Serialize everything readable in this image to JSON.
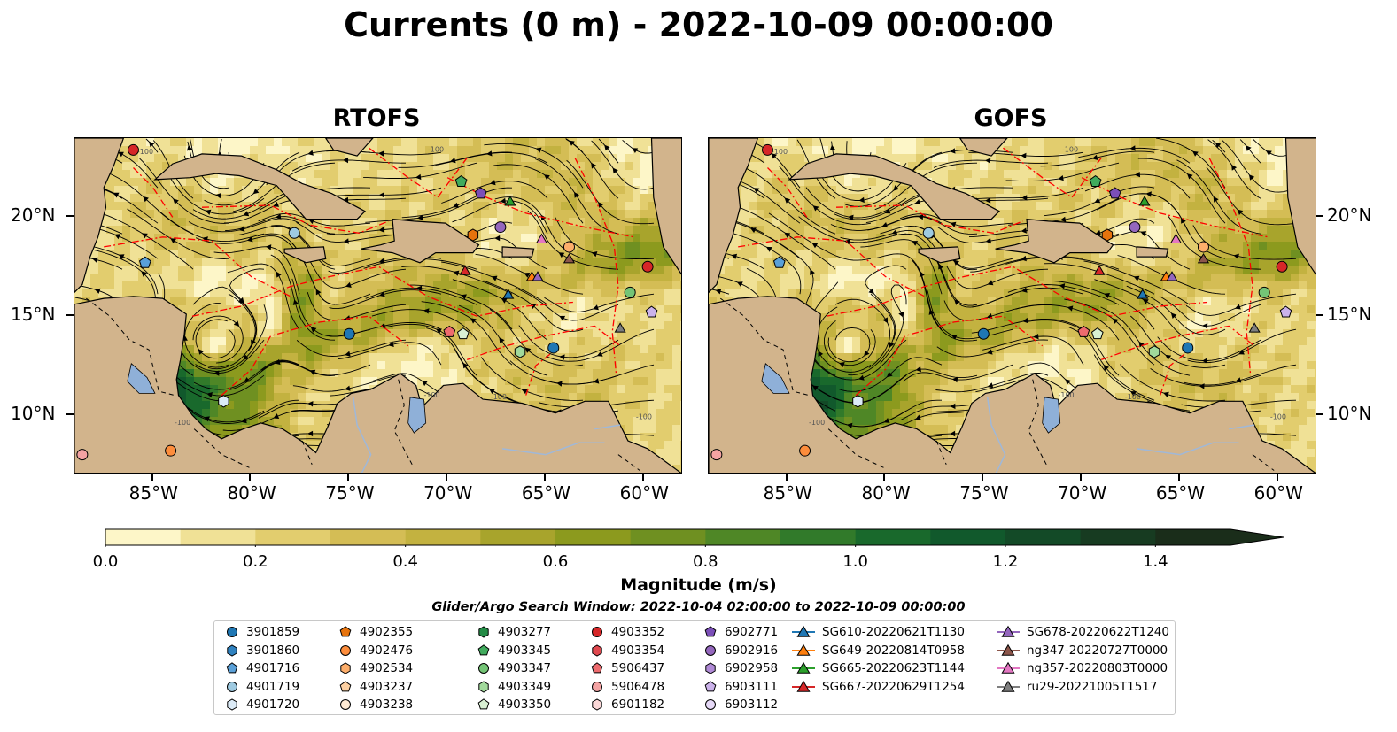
{
  "title": "Currents (0 m) - 2022-10-09 00:00:00",
  "panels": [
    {
      "title": "RTOFS"
    },
    {
      "title": "GOFS"
    }
  ],
  "map": {
    "lon_range": [
      -89.0,
      -58.0
    ],
    "lat_range": [
      7.0,
      24.0
    ],
    "x_ticks": [
      "85°W",
      "80°W",
      "75°W",
      "70°W",
      "65°W",
      "60°W"
    ],
    "x_tick_values": [
      -85,
      -80,
      -75,
      -70,
      -65,
      -60
    ],
    "y_ticks": [
      "20°N",
      "15°N",
      "10°N"
    ],
    "y_tick_values": [
      20,
      15,
      10
    ],
    "land_color": "#d2b48c",
    "eez_color": "#ff0000",
    "colormap": [
      "#fdf6c8",
      "#f0e196",
      "#e2cd6e",
      "#d4bd55",
      "#c3b240",
      "#a8a42c",
      "#8c9a1e",
      "#6f9021",
      "#4f8726",
      "#317a2a",
      "#19692c",
      "#11592c",
      "#134a27",
      "#173b21",
      "#1a2d1a"
    ]
  },
  "colorbar": {
    "title": "Magnitude (m/s)",
    "ticks": [
      "0.0",
      "0.2",
      "0.4",
      "0.6",
      "0.8",
      "1.0",
      "1.2",
      "1.4"
    ],
    "tick_values": [
      0.0,
      0.2,
      0.4,
      0.6,
      0.8,
      1.0,
      1.2,
      1.4
    ],
    "range": [
      0.0,
      1.5
    ]
  },
  "search_window": "Glider/Argo Search Window: 2022-10-04 02:00:00 to 2022-10-09 00:00:00",
  "legend": {
    "columns": [
      [
        {
          "label": "3901859",
          "shape": "circle",
          "color": "#1f77b4"
        },
        {
          "label": "3901860",
          "shape": "hexagon",
          "color": "#2f82c0"
        },
        {
          "label": "4901716",
          "shape": "pentagon",
          "color": "#5aa0d8"
        },
        {
          "label": "4901719",
          "shape": "circle",
          "color": "#9ecae1"
        },
        {
          "label": "4901720",
          "shape": "hexagon",
          "color": "#dcebf7"
        }
      ],
      [
        {
          "label": "4902355",
          "shape": "pentagon",
          "color": "#e6730d"
        },
        {
          "label": "4902476",
          "shape": "circle",
          "color": "#fd8d3c"
        },
        {
          "label": "4902534",
          "shape": "hexagon",
          "color": "#fdae6b"
        },
        {
          "label": "4903237",
          "shape": "pentagon",
          "color": "#fdd0a2"
        },
        {
          "label": "4903238",
          "shape": "circle",
          "color": "#feead4"
        }
      ],
      [
        {
          "label": "4903277",
          "shape": "hexagon",
          "color": "#238b45"
        },
        {
          "label": "4903345",
          "shape": "pentagon",
          "color": "#41ab5d"
        },
        {
          "label": "4903347",
          "shape": "circle",
          "color": "#74c476"
        },
        {
          "label": "4903349",
          "shape": "hexagon",
          "color": "#a1d99b"
        },
        {
          "label": "4903350",
          "shape": "pentagon",
          "color": "#d9f0d3"
        }
      ],
      [
        {
          "label": "4903352",
          "shape": "circle",
          "color": "#d62728"
        },
        {
          "label": "4903354",
          "shape": "hexagon",
          "color": "#e0484e"
        },
        {
          "label": "5906437",
          "shape": "pentagon",
          "color": "#ee6b6e"
        },
        {
          "label": "5906478",
          "shape": "circle",
          "color": "#f4a3a3"
        },
        {
          "label": "6901182",
          "shape": "hexagon",
          "color": "#fbd8d8"
        }
      ],
      [
        {
          "label": "6902771",
          "shape": "pentagon",
          "color": "#7b4fb8"
        },
        {
          "label": "6902916",
          "shape": "circle",
          "color": "#9467bd"
        },
        {
          "label": "6902958",
          "shape": "hexagon",
          "color": "#b08ad6"
        },
        {
          "label": "6903111",
          "shape": "pentagon",
          "color": "#cbb2ea"
        },
        {
          "label": "6903112",
          "shape": "circle",
          "color": "#e6d9f7"
        }
      ],
      [
        {
          "label": "SG610-20220621T1130",
          "shape": "triangle-line",
          "color": "#1f77b4"
        },
        {
          "label": "SG649-20220814T0958",
          "shape": "triangle-line",
          "color": "#ff7f0e"
        },
        {
          "label": "SG665-20220623T1144",
          "shape": "triangle-line",
          "color": "#2ca02c"
        },
        {
          "label": "SG667-20220629T1254",
          "shape": "triangle-line",
          "color": "#d62728"
        }
      ],
      [
        {
          "label": "SG678-20220622T1240",
          "shape": "triangle-line",
          "color": "#9467bd"
        },
        {
          "label": "ng347-20220727T0000",
          "shape": "triangle-line",
          "color": "#8c564b"
        },
        {
          "label": "ng357-20220803T0000",
          "shape": "triangle-line",
          "color": "#e377c2"
        },
        {
          "label": "ru29-20221005T1517",
          "shape": "triangle-line",
          "color": "#7f7f7f"
        }
      ]
    ]
  },
  "markers": [
    {
      "lon": -86.0,
      "lat": 23.4,
      "shape": "circle",
      "color": "#d62728"
    },
    {
      "lon": -85.4,
      "lat": 17.7,
      "shape": "pentagon",
      "color": "#5aa0d8"
    },
    {
      "lon": -77.8,
      "lat": 19.2,
      "shape": "circle",
      "color": "#9ecae1"
    },
    {
      "lon": -81.4,
      "lat": 10.7,
      "shape": "hexagon",
      "color": "#dcebf7"
    },
    {
      "lon": -75.0,
      "lat": 14.1,
      "shape": "circle",
      "color": "#1f77b4"
    },
    {
      "lon": -84.1,
      "lat": 8.2,
      "shape": "circle",
      "color": "#fd8d3c"
    },
    {
      "lon": -88.6,
      "lat": 8.0,
      "shape": "circle",
      "color": "#f4a3a3"
    },
    {
      "lon": -69.3,
      "lat": 21.8,
      "shape": "pentagon",
      "color": "#41ab5d"
    },
    {
      "lon": -68.3,
      "lat": 21.2,
      "shape": "pentagon",
      "color": "#7b4fb8"
    },
    {
      "lon": -66.8,
      "lat": 20.8,
      "shape": "triangle",
      "color": "#2ca02c"
    },
    {
      "lon": -67.3,
      "lat": 19.5,
      "shape": "circle",
      "color": "#9467bd"
    },
    {
      "lon": -68.7,
      "lat": 19.1,
      "shape": "hexagon",
      "color": "#e6730d"
    },
    {
      "lon": -65.2,
      "lat": 18.9,
      "shape": "triangle",
      "color": "#e377c2"
    },
    {
      "lon": -63.8,
      "lat": 18.5,
      "shape": "circle",
      "color": "#fdae6b"
    },
    {
      "lon": -63.8,
      "lat": 17.9,
      "shape": "triangle",
      "color": "#8c564b"
    },
    {
      "lon": -59.8,
      "lat": 17.5,
      "shape": "circle",
      "color": "#d62728"
    },
    {
      "lon": -69.1,
      "lat": 17.3,
      "shape": "triangle",
      "color": "#d62728"
    },
    {
      "lon": -65.7,
      "lat": 17.0,
      "shape": "triangle",
      "color": "#ff7f0e"
    },
    {
      "lon": -65.4,
      "lat": 17.0,
      "shape": "triangle",
      "color": "#9467bd"
    },
    {
      "lon": -66.9,
      "lat": 16.1,
      "shape": "triangle",
      "color": "#1f77b4"
    },
    {
      "lon": -60.7,
      "lat": 16.2,
      "shape": "circle",
      "color": "#74c476"
    },
    {
      "lon": -59.6,
      "lat": 15.2,
      "shape": "pentagon",
      "color": "#cbb2ea"
    },
    {
      "lon": -69.9,
      "lat": 14.2,
      "shape": "pentagon",
      "color": "#ee6b6e"
    },
    {
      "lon": -69.2,
      "lat": 14.1,
      "shape": "pentagon",
      "color": "#d9f0d3"
    },
    {
      "lon": -61.2,
      "lat": 14.4,
      "shape": "triangle",
      "color": "#7f7f7f"
    },
    {
      "lon": -64.6,
      "lat": 13.4,
      "shape": "circle",
      "color": "#1f77b4"
    },
    {
      "lon": -66.3,
      "lat": 13.2,
      "shape": "hexagon",
      "color": "#a1d99b"
    }
  ]
}
